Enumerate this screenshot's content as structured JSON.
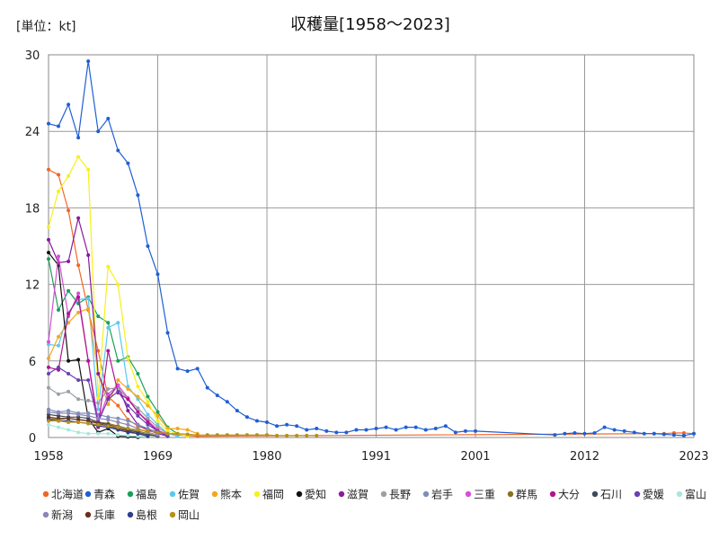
{
  "chart_data": {
    "type": "line",
    "title": "収穫量[1958～2023]",
    "unit_label": "[単位：kt]",
    "xlabel": "",
    "ylabel": "",
    "xlim": [
      1958,
      2023
    ],
    "ylim": [
      0,
      30
    ],
    "y_ticks": [
      0,
      6,
      12,
      18,
      24,
      30
    ],
    "x_ticks": [
      1958,
      1969,
      1980,
      1991,
      2001,
      2012,
      2023
    ],
    "grid": true,
    "legend_position": "bottom",
    "series": [
      {
        "name": "北海道",
        "color": "#f26522",
        "x": [
          1958,
          1959,
          1960,
          1961,
          1962,
          1963,
          1964,
          1965,
          1966,
          1967,
          1968,
          1969,
          1970,
          1971,
          1972,
          1973,
          2019,
          2020,
          2021,
          2022,
          2023
        ],
        "values": [
          21,
          20.6,
          17.8,
          13.5,
          10,
          6.8,
          3.2,
          2.5,
          1.4,
          0.9,
          0.6,
          0.5,
          0.3,
          0.2,
          0.15,
          0.1,
          0.3,
          0.3,
          0.35,
          0.35,
          0.3
        ]
      },
      {
        "name": "青森",
        "color": "#1f5fd4",
        "x": [
          1958,
          1959,
          1960,
          1961,
          1962,
          1963,
          1964,
          1965,
          1966,
          1967,
          1968,
          1969,
          1970,
          1971,
          1972,
          1973,
          1974,
          1975,
          1976,
          1977,
          1978,
          1979,
          1980,
          1981,
          1982,
          1983,
          1984,
          1985,
          1986,
          1987,
          1988,
          1989,
          1990,
          1991,
          1992,
          1993,
          1994,
          1995,
          1996,
          1997,
          1998,
          1999,
          2000,
          2001,
          2009,
          2010,
          2011,
          2012,
          2013,
          2014,
          2015,
          2016,
          2017,
          2018,
          2019,
          2020,
          2021,
          2022,
          2023
        ],
        "values": [
          24.6,
          24.4,
          26.1,
          23.5,
          29.5,
          24,
          25,
          22.5,
          21.5,
          19,
          15,
          12.8,
          8.2,
          5.4,
          5.2,
          5.4,
          3.9,
          3.3,
          2.8,
          2.1,
          1.6,
          1.3,
          1.2,
          0.9,
          1,
          0.9,
          0.6,
          0.7,
          0.5,
          0.4,
          0.4,
          0.6,
          0.6,
          0.7,
          0.8,
          0.6,
          0.8,
          0.8,
          0.6,
          0.7,
          0.9,
          0.4,
          0.5,
          0.5,
          0.2,
          0.3,
          0.35,
          0.3,
          0.35,
          0.8,
          0.6,
          0.5,
          0.4,
          0.3,
          0.3,
          0.25,
          0.2,
          0.15,
          0.3
        ]
      },
      {
        "name": "福島",
        "color": "#16a05a",
        "x": [
          1958,
          1959,
          1960,
          1961,
          1962,
          1963,
          1964,
          1965,
          1966,
          1967,
          1968,
          1969,
          1970,
          1971,
          1972
        ],
        "values": [
          14,
          10,
          11.5,
          10.5,
          11,
          9.5,
          9,
          6,
          6.3,
          5,
          3.2,
          2,
          0.8,
          0.3,
          0.1
        ]
      },
      {
        "name": "佐賀",
        "color": "#5bc8ef",
        "x": [
          1958,
          1959,
          1960,
          1961,
          1962,
          1963,
          1964,
          1965,
          1966,
          1967,
          1968,
          1969,
          1970,
          1971
        ],
        "values": [
          7.3,
          7.2,
          9.8,
          10.8,
          10.9,
          2.2,
          8.6,
          9,
          4,
          3,
          1.8,
          1,
          0.3,
          0.1
        ]
      },
      {
        "name": "熊本",
        "color": "#f2a81c",
        "x": [
          1958,
          1959,
          1960,
          1961,
          1962,
          1963,
          1964,
          1965,
          1966,
          1967,
          1968,
          1969,
          1970,
          1971,
          1972,
          1973
        ],
        "values": [
          6.2,
          7.9,
          9,
          9.8,
          10.1,
          5,
          2.6,
          4.5,
          3.8,
          3.2,
          2.5,
          1.7,
          0.7,
          0.7,
          0.6,
          0.3
        ]
      },
      {
        "name": "福岡",
        "color": "#f7f01a",
        "x": [
          1958,
          1959,
          1960,
          1961,
          1962,
          1963,
          1964,
          1965,
          1966,
          1967,
          1968,
          1969,
          1970,
          1971,
          1972
        ],
        "values": [
          16.5,
          19.3,
          20.5,
          22,
          21,
          3.1,
          13.4,
          12,
          6.2,
          4,
          2.8,
          1.3,
          0.5,
          0.3,
          0.1
        ]
      },
      {
        "name": "愛知",
        "color": "#111111",
        "x": [
          1958,
          1959,
          1960,
          1961,
          1962,
          1963,
          1964,
          1965,
          1966,
          1967
        ],
        "values": [
          14.5,
          13.5,
          6,
          6.1,
          1.5,
          0.4,
          0.7,
          0.1,
          0.05,
          0.02
        ]
      },
      {
        "name": "滋賀",
        "color": "#8a1a9e",
        "x": [
          1958,
          1959,
          1960,
          1961,
          1962,
          1963,
          1964,
          1965,
          1966,
          1967,
          1968,
          1969,
          1970
        ],
        "values": [
          15.5,
          13.7,
          13.8,
          17.2,
          14.3,
          5,
          3.1,
          4.1,
          2.1,
          1,
          0.6,
          0.3,
          0.1
        ]
      },
      {
        "name": "長野",
        "color": "#9aa0a6",
        "x": [
          1958,
          1959,
          1960,
          1961,
          1962,
          1963,
          1964,
          1965,
          1966,
          1967,
          1968,
          1969,
          1970
        ],
        "values": [
          3.9,
          3.4,
          3.6,
          3,
          2.9,
          2.7,
          3.8,
          3.9,
          3,
          2.3,
          1.5,
          0.8,
          0.3
        ]
      },
      {
        "name": "岩手",
        "color": "#7b8fb8",
        "x": [
          1958,
          1959,
          1960,
          1961,
          1962,
          1963,
          1964,
          1965,
          1966,
          1967,
          1968,
          1969,
          1970
        ],
        "values": [
          2.2,
          2,
          2.1,
          1.9,
          1.9,
          1.8,
          1.6,
          1.5,
          1.3,
          1,
          0.7,
          0.4,
          0.2
        ]
      },
      {
        "name": "三重",
        "color": "#d64fd6",
        "x": [
          1958,
          1959,
          1960,
          1961,
          1962,
          1963,
          1964,
          1965,
          1966,
          1967,
          1968,
          1969,
          1970
        ],
        "values": [
          7.5,
          14.2,
          9.5,
          11.3,
          6,
          1.3,
          3.4,
          4.1,
          3.1,
          2,
          1.3,
          0.6,
          0.2
        ]
      },
      {
        "name": "群馬",
        "color": "#8a7022",
        "x": [
          1958,
          1959,
          1960,
          1961,
          1962,
          1963,
          1964,
          1965,
          1966,
          1967,
          1968,
          1969
        ],
        "values": [
          1.5,
          1.4,
          1.5,
          1.4,
          1.3,
          1.2,
          1.1,
          0.9,
          0.7,
          0.5,
          0.3,
          0.1
        ]
      },
      {
        "name": "大分",
        "color": "#b0158f",
        "x": [
          1958,
          1959,
          1960,
          1961,
          1962,
          1963,
          1964,
          1965,
          1966,
          1967,
          1968,
          1969,
          1970
        ],
        "values": [
          5.5,
          5.3,
          9.7,
          11,
          6,
          0.8,
          6.8,
          3.5,
          3,
          2,
          1.2,
          0.5,
          0.1
        ]
      },
      {
        "name": "石川",
        "color": "#3a4a5c",
        "x": [
          1958,
          1959,
          1960,
          1961,
          1962,
          1963,
          1964,
          1965,
          1966,
          1967,
          1968,
          1969
        ],
        "values": [
          1.8,
          1.7,
          1.6,
          1.6,
          1.5,
          1.2,
          1,
          0.8,
          0.6,
          0.4,
          0.2,
          0.1
        ]
      },
      {
        "name": "愛媛",
        "color": "#6a3fb0",
        "x": [
          1958,
          1959,
          1960,
          1961,
          1962,
          1963,
          1964,
          1965,
          1966,
          1967,
          1968,
          1969,
          1970
        ],
        "values": [
          5,
          5.5,
          5,
          4.5,
          4.5,
          1.2,
          3,
          3.6,
          2.5,
          1.7,
          1,
          0.5,
          0.1
        ]
      },
      {
        "name": "富山",
        "color": "#a8e8dc",
        "x": [
          1958,
          1959,
          1960,
          1961,
          1962,
          1963,
          1964,
          1965,
          1966,
          1967,
          1968
        ],
        "values": [
          1,
          0.8,
          0.6,
          0.4,
          0.3,
          0.3,
          0.3,
          0.2,
          0.15,
          0.1,
          0.05
        ]
      },
      {
        "name": "新潟",
        "color": "#8c86b8",
        "x": [
          1958,
          1959,
          1960,
          1961,
          1962,
          1963,
          1964,
          1965,
          1966,
          1967,
          1968,
          1969
        ],
        "values": [
          2,
          1.9,
          1.9,
          1.8,
          1.7,
          1.5,
          1.4,
          1.2,
          1,
          0.7,
          0.4,
          0.2
        ]
      },
      {
        "name": "兵庫",
        "color": "#6b2e1a",
        "x": [
          1958,
          1959,
          1960,
          1961,
          1962,
          1963,
          1964,
          1965,
          1966,
          1967,
          1968
        ],
        "values": [
          1.6,
          1.5,
          1.5,
          1.4,
          1.3,
          1.1,
          0.9,
          0.7,
          0.5,
          0.3,
          0.1
        ]
      },
      {
        "name": "島根",
        "color": "#2c3e8c",
        "x": [
          1958,
          1959,
          1960,
          1961,
          1962,
          1963,
          1964,
          1965,
          1966,
          1967,
          1968
        ],
        "values": [
          1.4,
          1.3,
          1.3,
          1.2,
          1.1,
          0.9,
          0.8,
          0.6,
          0.4,
          0.3,
          0.1
        ]
      },
      {
        "name": "岡山",
        "color": "#b8901a",
        "x": [
          1958,
          1959,
          1960,
          1961,
          1962,
          1963,
          1964,
          1965,
          1966,
          1967,
          1968,
          1969,
          1970,
          1971,
          1972,
          1973,
          1974,
          1975,
          1976,
          1977,
          1978,
          1979,
          1980,
          1981,
          1982,
          1983,
          1984,
          1985
        ],
        "values": [
          1.3,
          1.3,
          1.2,
          1.2,
          1.1,
          1,
          0.9,
          0.8,
          0.7,
          0.6,
          0.5,
          0.4,
          0.3,
          0.3,
          0.25,
          0.2,
          0.2,
          0.2,
          0.2,
          0.2,
          0.2,
          0.2,
          0.2,
          0.15,
          0.15,
          0.15,
          0.15,
          0.15
        ]
      }
    ]
  }
}
